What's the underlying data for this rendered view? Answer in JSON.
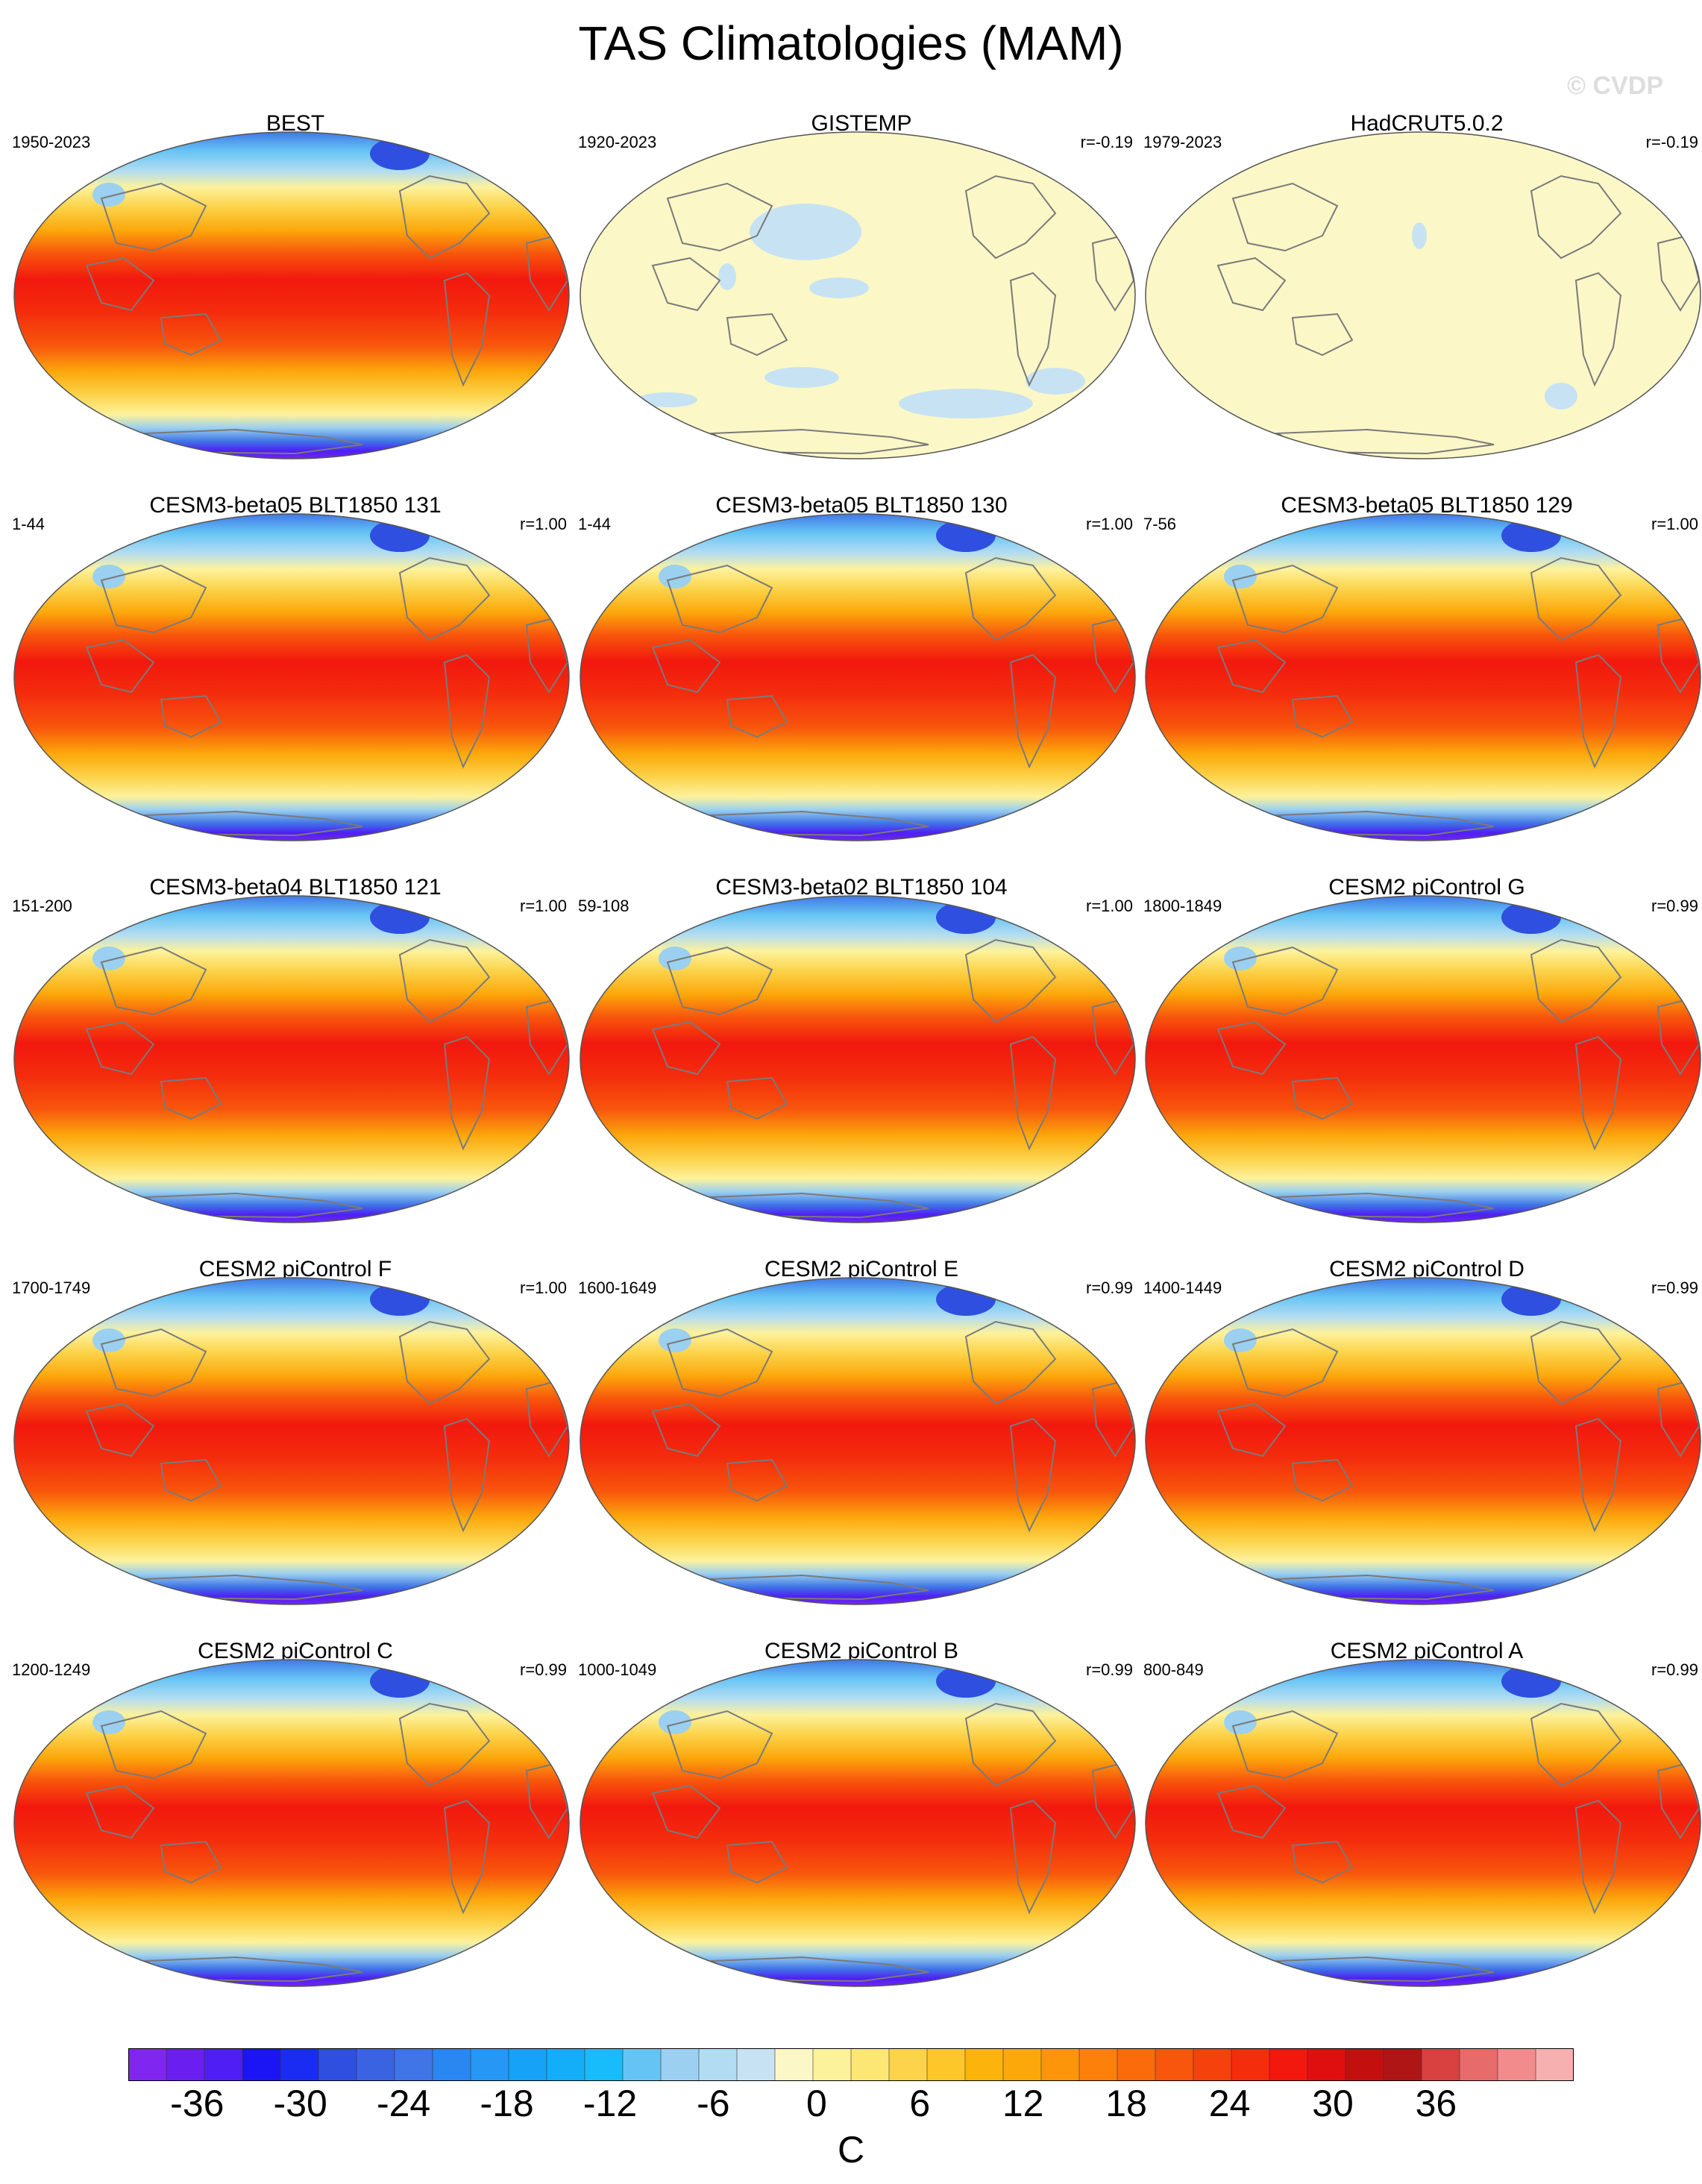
{
  "figure": {
    "title": "TAS Climatologies (MAM)",
    "watermark": "© CVDP"
  },
  "panels": [
    {
      "title": "BEST",
      "years": "1950-2023",
      "corr": "",
      "field": "obs"
    },
    {
      "title": "GISTEMP",
      "years": "1920-2023",
      "corr": "r=-0.19",
      "field": "diff1"
    },
    {
      "title": "HadCRUT5.0.2",
      "years": "1979-2023",
      "corr": "r=-0.19",
      "field": "diff2"
    },
    {
      "title": "CESM3-beta05 BLT1850 131",
      "years": "1-44",
      "corr": "r=1.00",
      "field": "model"
    },
    {
      "title": "CESM3-beta05 BLT1850 130",
      "years": "1-44",
      "corr": "r=1.00",
      "field": "model"
    },
    {
      "title": "CESM3-beta05 BLT1850 129",
      "years": "7-56",
      "corr": "r=1.00",
      "field": "model"
    },
    {
      "title": "CESM3-beta04 BLT1850 121",
      "years": "151-200",
      "corr": "r=1.00",
      "field": "model"
    },
    {
      "title": "CESM3-beta02 BLT1850 104",
      "years": "59-108",
      "corr": "r=1.00",
      "field": "model"
    },
    {
      "title": "CESM2 piControl G",
      "years": "1800-1849",
      "corr": "r=0.99",
      "field": "model"
    },
    {
      "title": "CESM2 piControl F",
      "years": "1700-1749",
      "corr": "r=1.00",
      "field": "model"
    },
    {
      "title": "CESM2 piControl E",
      "years": "1600-1649",
      "corr": "r=0.99",
      "field": "model"
    },
    {
      "title": "CESM2 piControl D",
      "years": "1400-1449",
      "corr": "r=0.99",
      "field": "model"
    },
    {
      "title": "CESM2 piControl C",
      "years": "1200-1249",
      "corr": "r=0.99",
      "field": "model"
    },
    {
      "title": "CESM2 piControl B",
      "years": "1000-1049",
      "corr": "r=0.99",
      "field": "model"
    },
    {
      "title": "CESM2 piControl A",
      "years": "800-849",
      "corr": "r=0.99",
      "field": "model"
    }
  ],
  "colorbar": {
    "colors": [
      "#7f27f0",
      "#6a1ff0",
      "#4f1ef5",
      "#1b14f5",
      "#1b2cf2",
      "#2f4fe0",
      "#3a63e2",
      "#3f75e6",
      "#2a86f0",
      "#2797f5",
      "#16a2f7",
      "#14aef8",
      "#19bcfb",
      "#66c4f4",
      "#9bd0f0",
      "#b2dcf2",
      "#c7e3f3",
      "#fcf7c7",
      "#fdf29c",
      "#fce775",
      "#fcd34a",
      "#fdc629",
      "#fcb40d",
      "#fca80b",
      "#fd950b",
      "#fd800b",
      "#fb6b0b",
      "#f8560c",
      "#f5410c",
      "#f42d0d",
      "#f2180e",
      "#e00f0f",
      "#c40f0f",
      "#b01515",
      "#d94040",
      "#e86b6b",
      "#f28c8c",
      "#f7b0b0"
    ],
    "tick_labels": [
      "-36",
      "-30",
      "-24",
      "-18",
      "-12",
      "-6",
      "0",
      "6",
      "12",
      "18",
      "24",
      "30",
      "36"
    ],
    "tick_values": [
      -36,
      -30,
      -24,
      -18,
      -12,
      -6,
      0,
      6,
      12,
      18,
      24,
      30,
      36
    ],
    "min": -40,
    "max": 44,
    "units": "C"
  }
}
